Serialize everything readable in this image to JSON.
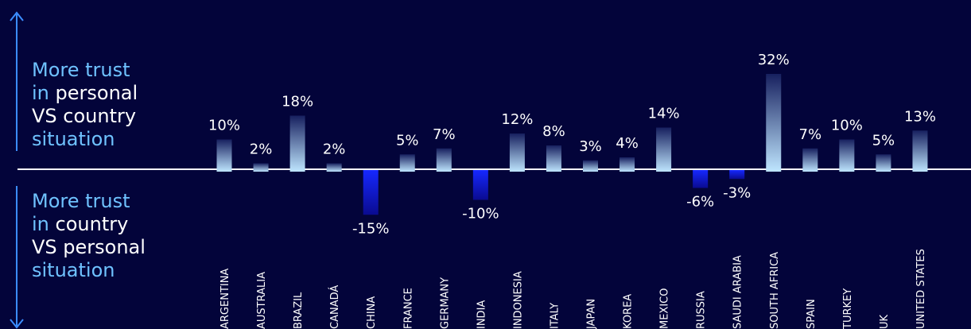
{
  "annotations": {
    "top": [
      {
        "text": "More trust",
        "color": "#6fc2ff"
      },
      {
        "text": "in ",
        "color": "#6fc2ff",
        "emph": "personal"
      },
      {
        "text": "VS country",
        "color": "#ffffff"
      },
      {
        "text": "situation",
        "color": "#6fc2ff"
      }
    ],
    "bottom": [
      {
        "text": "More trust",
        "color": "#6fc2ff"
      },
      {
        "text": "in ",
        "color": "#6fc2ff",
        "emph": "country"
      },
      {
        "text": "VS personal",
        "color": "#ffffff"
      },
      {
        "text": "situation",
        "color": "#6fc2ff"
      }
    ]
  },
  "colors": {
    "background": "#03043a",
    "positive_top": "#17205f",
    "positive_bottom": "#bfe6ff",
    "negative_top": "#1628ff",
    "negative_bottom": "#0a0b90",
    "axis": "#ffffff",
    "arrow": "#3b8dff",
    "text": "#ffffff"
  },
  "chart_data": {
    "type": "bar",
    "categories": [
      "ARGENTINA",
      "AUSTRALIA",
      "BRAZIL",
      "CANADÁ",
      "CHINA",
      "FRANCE",
      "GERMANY",
      "INDIA",
      "INDONESIA",
      "ITALY",
      "JAPAN",
      "KOREA",
      "MEXICO",
      "RUSSIA",
      "SAUDI ARABIA",
      "SOUTH AFRICA",
      "SPAIN",
      "TURKEY",
      "UK",
      "UNITED STATES"
    ],
    "values": [
      10,
      2,
      18,
      2,
      -15,
      5,
      7,
      -10,
      12,
      8,
      3,
      4,
      14,
      -6,
      -3,
      32,
      7,
      10,
      5,
      13
    ],
    "value_labels": [
      "10%",
      "2%",
      "18%",
      "2%",
      "-15%",
      "5%",
      "7%",
      "-10%",
      "12%",
      "8%",
      "3%",
      "4%",
      "14%",
      "-6%",
      "-3%",
      "32%",
      "7%",
      "10%",
      "5%",
      "13%"
    ],
    "title": "",
    "xlabel": "",
    "ylabel": "",
    "ylim": [
      -15,
      32
    ],
    "grid": false,
    "legend": "none"
  }
}
